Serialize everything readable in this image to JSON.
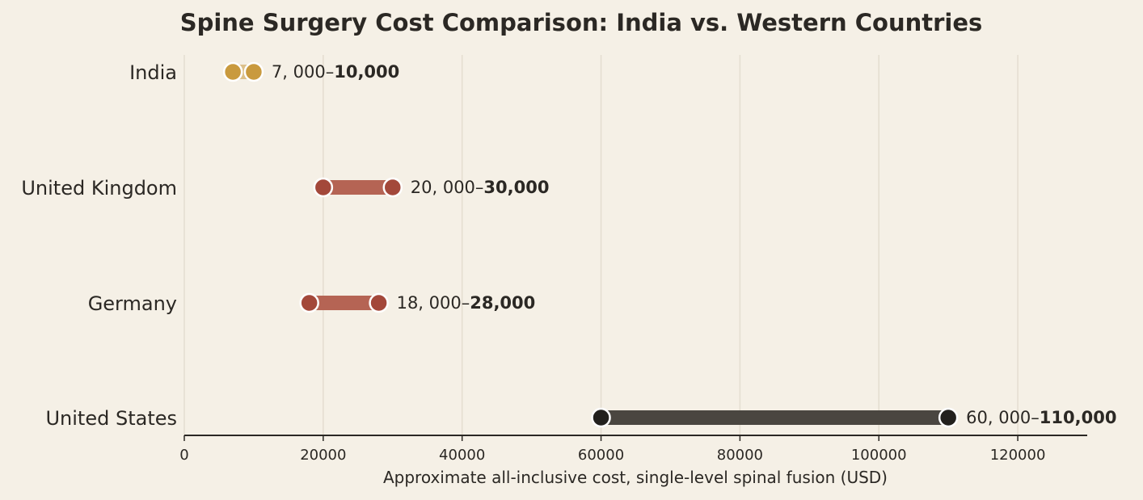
{
  "chart_data": {
    "type": "dumbbell",
    "title": "Spine Surgery Cost Comparison: India vs. Western Countries",
    "xlabel": "Approximate all-inclusive cost, single-level spinal fusion (USD)",
    "ylabel": "",
    "xlim": [
      0,
      130000
    ],
    "xticks": [
      0,
      20000,
      40000,
      60000,
      80000,
      100000,
      120000
    ],
    "tick_labels": [
      "0",
      "20000",
      "40000",
      "60000",
      "80000",
      "100000",
      "120000"
    ],
    "grid": "vertical",
    "rows": [
      {
        "category": "India",
        "low": 7000,
        "high": 10000,
        "low_label": "7, 000–",
        "high_label": "10,000",
        "color": "#c99a3e",
        "bar_color": "#dcc08a",
        "dot_color": "#c99a3e"
      },
      {
        "category": "United Kingdom",
        "low": 20000,
        "high": 30000,
        "low_label": "20, 000–",
        "high_label": "30,000",
        "color": "#a64a3a",
        "bar_color": "#b56454",
        "dot_color": "#a3483a"
      },
      {
        "category": "Germany",
        "low": 18000,
        "high": 28000,
        "low_label": "18, 000–",
        "high_label": "28,000",
        "color": "#a64a3a",
        "bar_color": "#b56454",
        "dot_color": "#a3483a"
      },
      {
        "category": "United States",
        "low": 60000,
        "high": 110000,
        "low_label": "60, 000–",
        "high_label": "110,000",
        "color": "#2b2824",
        "bar_color": "#4a4640",
        "dot_color": "#22201d"
      }
    ]
  },
  "colors": {
    "background": "#f5f0e6",
    "gridline": "#e4ddd0",
    "axis": "#2b2824",
    "text": "#2b2824"
  }
}
